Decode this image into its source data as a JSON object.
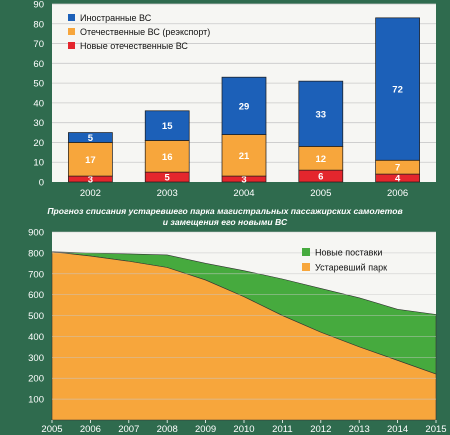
{
  "colors": {
    "background": "#2f6b4e",
    "plot_bg": "#f6f6f3",
    "grid": "#c9c9c9",
    "blue": "#1c60b8",
    "orange": "#f7a63c",
    "red": "#e4262d",
    "green": "#46aa3e",
    "text": "#ffffff"
  },
  "chart_data": [
    {
      "type": "bar",
      "stacked": true,
      "categories": [
        "2002",
        "2003",
        "2004",
        "2005",
        "2006"
      ],
      "series": [
        {
          "name": "Новые отечественные ВС",
          "color": "#e4262d",
          "values": [
            3,
            5,
            3,
            6,
            4
          ]
        },
        {
          "name": "Отечественные ВС (реэкспорт)",
          "color": "#f7a63c",
          "values": [
            17,
            16,
            21,
            12,
            7
          ]
        },
        {
          "name": "Иностранные ВС",
          "color": "#1c60b8",
          "values": [
            5,
            15,
            29,
            33,
            72
          ]
        }
      ],
      "legend_order": [
        "Иностранные ВС",
        "Отечественные ВС (реэкспорт)",
        "Новые отечественные ВС"
      ],
      "ylim": [
        0,
        90
      ],
      "yticks": [
        0,
        10,
        20,
        30,
        40,
        50,
        60,
        70,
        80,
        90
      ],
      "grid": true,
      "legend_position": "top-left"
    },
    {
      "type": "area",
      "stacked": true,
      "title_lines": [
        "Прогноз списания устаревшего парка магистральных пассажирских самолетов",
        "и замещения его новыми ВС"
      ],
      "x": [
        "2005",
        "2006",
        "2007",
        "2008",
        "2009",
        "2010",
        "2011",
        "2012",
        "2013",
        "2014",
        "2015"
      ],
      "series": [
        {
          "name": "Устаревший парк",
          "color": "#f7a63c",
          "values": [
            805,
            785,
            760,
            730,
            670,
            590,
            500,
            420,
            350,
            285,
            220
          ]
        },
        {
          "name": "Новые поставки",
          "color": "#46aa3e",
          "values": [
            0,
            15,
            35,
            60,
            80,
            125,
            175,
            210,
            235,
            245,
            285
          ]
        }
      ],
      "legend_order": [
        "Новые поставки",
        "Устаревший парк"
      ],
      "ylim": [
        0,
        900
      ],
      "yticks": [
        100,
        200,
        300,
        400,
        500,
        600,
        700,
        800,
        900
      ],
      "grid": true,
      "legend_position": "top-right"
    }
  ]
}
